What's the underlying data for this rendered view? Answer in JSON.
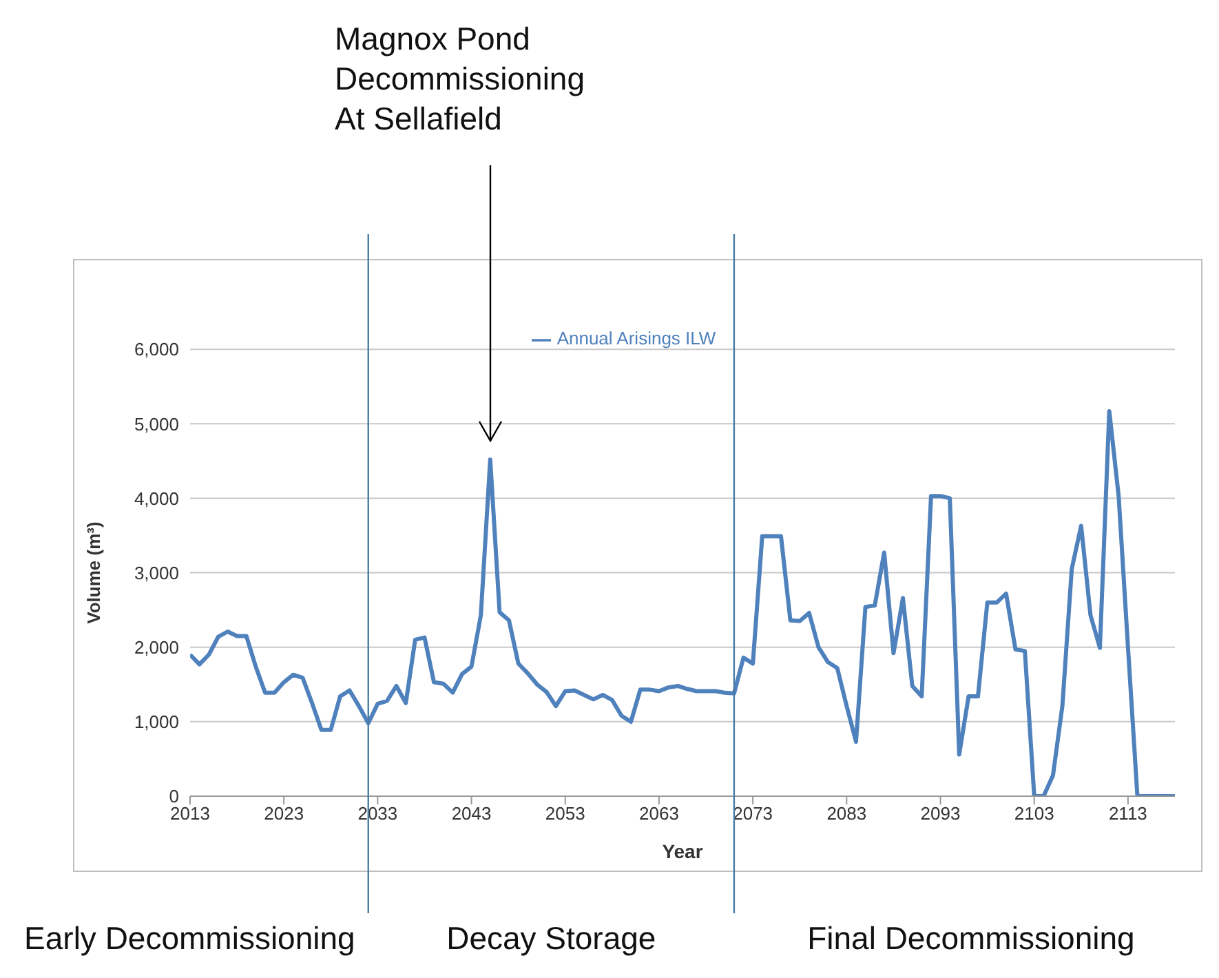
{
  "chart_data": {
    "type": "line",
    "xlabel": "Year",
    "ylabel": "Volume (m³)",
    "x": [
      2013,
      2014,
      2015,
      2016,
      2017,
      2018,
      2019,
      2020,
      2021,
      2022,
      2023,
      2024,
      2025,
      2026,
      2027,
      2028,
      2029,
      2030,
      2031,
      2032,
      2033,
      2034,
      2035,
      2036,
      2037,
      2038,
      2039,
      2040,
      2041,
      2042,
      2043,
      2044,
      2045,
      2046,
      2047,
      2048,
      2049,
      2050,
      2051,
      2052,
      2053,
      2054,
      2055,
      2056,
      2057,
      2058,
      2059,
      2060,
      2061,
      2062,
      2063,
      2064,
      2065,
      2066,
      2067,
      2068,
      2069,
      2070,
      2071,
      2072,
      2073,
      2074,
      2075,
      2076,
      2077,
      2078,
      2079,
      2080,
      2081,
      2082,
      2083,
      2084,
      2085,
      2086,
      2087,
      2088,
      2089,
      2090,
      2091,
      2092,
      2093,
      2094,
      2095,
      2096,
      2097,
      2098,
      2099,
      2100,
      2101,
      2102,
      2103,
      2104,
      2105,
      2106,
      2107,
      2108,
      2109,
      2110,
      2111,
      2112,
      2113,
      2114,
      2115,
      2116,
      2117,
      2118
    ],
    "series": [
      {
        "name": "Annual Arisings ILW",
        "color": "#4f81bd",
        "values": [
          1900,
          1770,
          1900,
          2140,
          2210,
          2150,
          2150,
          1740,
          1390,
          1390,
          1530,
          1630,
          1590,
          1250,
          890,
          890,
          1340,
          1420,
          1210,
          980,
          1240,
          1280,
          1480,
          1250,
          2100,
          2130,
          1530,
          1510,
          1390,
          1640,
          1740,
          2430,
          4520,
          2470,
          2360,
          1780,
          1650,
          1500,
          1400,
          1210,
          1410,
          1420,
          1360,
          1300,
          1360,
          1290,
          1080,
          1000,
          1430,
          1430,
          1410,
          1460,
          1480,
          1440,
          1410,
          1410,
          1410,
          1390,
          1380,
          1860,
          1780,
          3490,
          3490,
          3490,
          2360,
          2350,
          2460,
          2000,
          1800,
          1720,
          1210,
          730,
          2540,
          2560,
          3270,
          1920,
          2660,
          1480,
          1340,
          4030,
          4030,
          4000,
          560,
          1340,
          1340,
          2600,
          2600,
          2720,
          1970,
          1950,
          0,
          0,
          280,
          1210,
          3050,
          3630,
          2430,
          1990,
          5170,
          4030,
          1990,
          0,
          0,
          0,
          0,
          0
        ]
      }
    ],
    "xlim": [
      2013,
      2118
    ],
    "xticks": [
      2013,
      2023,
      2033,
      2043,
      2053,
      2063,
      2073,
      2083,
      2093,
      2103,
      2113
    ],
    "ylim": [
      0,
      6000
    ],
    "yticks": [
      {
        "value": 0,
        "label": "0"
      },
      {
        "value": 1000,
        "label": "1,000"
      },
      {
        "value": 2000,
        "label": "2,000"
      },
      {
        "value": 3000,
        "label": "3,000"
      },
      {
        "value": 4000,
        "label": "4,000"
      },
      {
        "value": 5000,
        "label": "5,000"
      },
      {
        "value": 6000,
        "label": "6,000"
      }
    ],
    "grid": "y",
    "legend": "top",
    "marker": "none",
    "line_style": "solid",
    "ref_lines": [
      {
        "axis": "x",
        "value": 2032,
        "color": "#4a7ca5"
      },
      {
        "axis": "x",
        "value": 2071,
        "color": "#4a7ca5"
      }
    ],
    "annotations": [
      "Magnox Pond\nDecommissioning\nAt Sellafield",
      "Early Decommissioning",
      "Decay Storage",
      "Final Decommissioning"
    ]
  }
}
